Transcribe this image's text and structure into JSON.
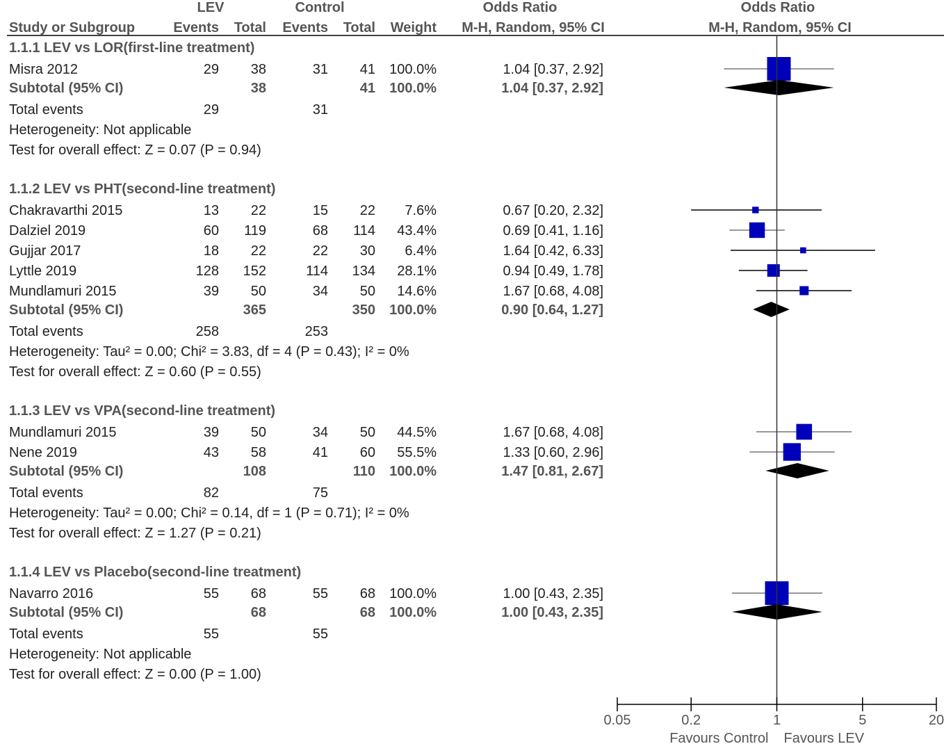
{
  "header": {
    "group1": "LEV",
    "group2": "Control",
    "or_title": "Odds Ratio",
    "plot_title": "Odds Ratio",
    "col_study": "Study or Subgroup",
    "col_events1": "Events",
    "col_total1": "Total",
    "col_events2": "Events",
    "col_total2": "Total",
    "col_weight": "Weight",
    "col_method": "M-H, Random, 95% CI",
    "plot_method": "M-H, Random, 95% CI"
  },
  "chart_data": {
    "type": "forest",
    "scale": "log",
    "xlim": [
      0.05,
      20
    ],
    "reference_line": 1,
    "axis": {
      "ticks": [
        {
          "value": 0.05,
          "label": "0.05"
        },
        {
          "value": 0.2,
          "label": "0.2"
        },
        {
          "value": 1,
          "label": "1"
        },
        {
          "value": 5,
          "label": "5"
        },
        {
          "value": 20,
          "label": "20"
        }
      ],
      "left_label": "Favours Control",
      "right_label": "Favours LEV"
    },
    "groups": [
      {
        "title": "1.1.1 LEV vs LOR(first-line treatment)",
        "studies": [
          {
            "name": "Misra 2012",
            "events1": "29",
            "total1": "38",
            "events2": "31",
            "total2": "41",
            "weight": "100.0%",
            "weight_value": 100.0,
            "ci_text": "1.04 [0.37, 2.92]",
            "or": 1.04,
            "lo": 0.37,
            "hi": 2.92
          }
        ],
        "subtotal": {
          "label": "Subtotal (95% CI)",
          "total1": "38",
          "total2": "41",
          "weight": "100.0%",
          "ci_text": "1.04 [0.37, 2.92]",
          "or": 1.04,
          "lo": 0.37,
          "hi": 2.92
        },
        "events": {
          "label": "Total events",
          "events1": "29",
          "events2": "31"
        },
        "heterogeneity": "Heterogeneity: Not applicable",
        "overall": "Test for overall effect: Z = 0.07 (P = 0.94)"
      },
      {
        "title": "1.1.2 LEV vs PHT(second-line treatment)",
        "studies": [
          {
            "name": "Chakravarthi 2015",
            "events1": "13",
            "total1": "22",
            "events2": "15",
            "total2": "22",
            "weight": "7.6%",
            "weight_value": 7.6,
            "ci_text": "0.67 [0.20, 2.32]",
            "or": 0.67,
            "lo": 0.2,
            "hi": 2.32
          },
          {
            "name": "Dalziel 2019",
            "events1": "60",
            "total1": "119",
            "events2": "68",
            "total2": "114",
            "weight": "43.4%",
            "weight_value": 43.4,
            "ci_text": "0.69 [0.41, 1.16]",
            "or": 0.69,
            "lo": 0.41,
            "hi": 1.16
          },
          {
            "name": "Gujjar  2017",
            "events1": "18",
            "total1": "22",
            "events2": "22",
            "total2": "30",
            "weight": "6.4%",
            "weight_value": 6.4,
            "ci_text": "1.64 [0.42, 6.33]",
            "or": 1.64,
            "lo": 0.42,
            "hi": 6.33
          },
          {
            "name": "Lyttle 2019",
            "events1": "128",
            "total1": "152",
            "events2": "114",
            "total2": "134",
            "weight": "28.1%",
            "weight_value": 28.1,
            "ci_text": "0.94 [0.49, 1.78]",
            "or": 0.94,
            "lo": 0.49,
            "hi": 1.78
          },
          {
            "name": "Mundlamuri 2015",
            "events1": "39",
            "total1": "50",
            "events2": "34",
            "total2": "50",
            "weight": "14.6%",
            "weight_value": 14.6,
            "ci_text": "1.67 [0.68, 4.08]",
            "or": 1.67,
            "lo": 0.68,
            "hi": 4.08
          }
        ],
        "subtotal": {
          "label": "Subtotal (95% CI)",
          "total1": "365",
          "total2": "350",
          "weight": "100.0%",
          "ci_text": "0.90 [0.64, 1.27]",
          "or": 0.9,
          "lo": 0.64,
          "hi": 1.27
        },
        "events": {
          "label": "Total events",
          "events1": "258",
          "events2": "253"
        },
        "heterogeneity": "Heterogeneity: Tau² = 0.00; Chi² = 3.83, df = 4 (P = 0.43); I² = 0%",
        "overall": "Test for overall effect: Z = 0.60 (P = 0.55)"
      },
      {
        "title": "1.1.3 LEV vs VPA(second-line treatment)",
        "studies": [
          {
            "name": "Mundlamuri 2015",
            "events1": "39",
            "total1": "50",
            "events2": "34",
            "total2": "50",
            "weight": "44.5%",
            "weight_value": 44.5,
            "ci_text": "1.67 [0.68, 4.08]",
            "or": 1.67,
            "lo": 0.68,
            "hi": 4.08
          },
          {
            "name": "Nene 2019",
            "events1": "43",
            "total1": "58",
            "events2": "41",
            "total2": "60",
            "weight": "55.5%",
            "weight_value": 55.5,
            "ci_text": "1.33 [0.60, 2.96]",
            "or": 1.33,
            "lo": 0.6,
            "hi": 2.96
          }
        ],
        "subtotal": {
          "label": "Subtotal (95% CI)",
          "total1": "108",
          "total2": "110",
          "weight": "100.0%",
          "ci_text": "1.47 [0.81, 2.67]",
          "or": 1.47,
          "lo": 0.81,
          "hi": 2.67
        },
        "events": {
          "label": "Total events",
          "events1": "82",
          "events2": "75"
        },
        "heterogeneity": "Heterogeneity: Tau² = 0.00; Chi² = 0.14, df = 1 (P = 0.71); I² = 0%",
        "overall": "Test for overall effect: Z = 1.27 (P = 0.21)"
      },
      {
        "title": "1.1.4 LEV vs Placebo(second-line treatment)",
        "studies": [
          {
            "name": "Navarro 2016",
            "events1": "55",
            "total1": "68",
            "events2": "55",
            "total2": "68",
            "weight": "100.0%",
            "weight_value": 100.0,
            "ci_text": "1.00 [0.43, 2.35]",
            "or": 1.0,
            "lo": 0.43,
            "hi": 2.35
          }
        ],
        "subtotal": {
          "label": "Subtotal (95% CI)",
          "total1": "68",
          "total2": "68",
          "weight": "100.0%",
          "ci_text": "1.00 [0.43, 2.35]",
          "or": 1.0,
          "lo": 0.43,
          "hi": 2.35
        },
        "events": {
          "label": "Total events",
          "events1": "55",
          "events2": "55"
        },
        "heterogeneity": "Heterogeneity: Not applicable",
        "overall": "Test for overall effect: Z = 0.00 (P = 1.00)"
      }
    ]
  },
  "colors": {
    "square": "#0000bb",
    "diamond": "#000000",
    "ci_line": "#000000",
    "ci_line_big": "#777777",
    "axis": "#000000",
    "ref_line": "#333333"
  }
}
